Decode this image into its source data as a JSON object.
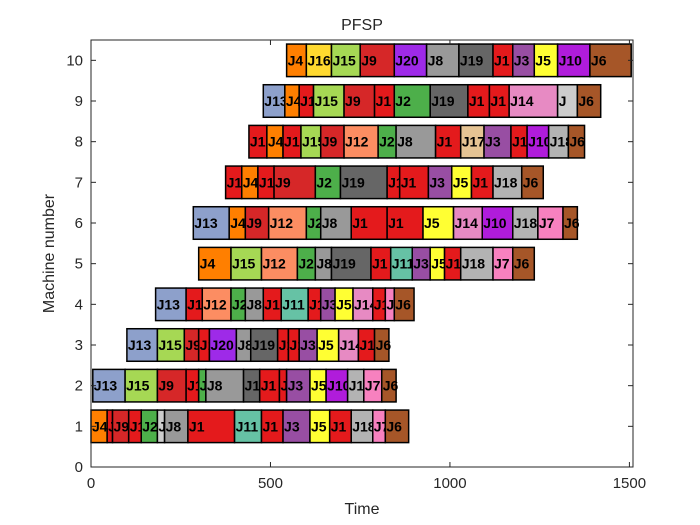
{
  "chart_data": {
    "type": "gantt",
    "title": "PFSP",
    "xlabel": "Time",
    "ylabel": "Machine number",
    "xlim": [
      0,
      1510
    ],
    "ylim": [
      0,
      10.5
    ],
    "xticks": [
      0,
      500,
      1000,
      1500
    ],
    "yticks": [
      0,
      1,
      2,
      3,
      4,
      5,
      6,
      7,
      8,
      9,
      10
    ],
    "grid": false,
    "colors": {
      "J1": "#e41a1c",
      "J2": "#4daf4a",
      "J3": "#984ea3",
      "J4": "#ff7f00",
      "J5": "#ffff33",
      "J6": "#a65628",
      "J7": "#f781bf",
      "J8": "#999999",
      "J9": "#d62728",
      "J10": "#b01cdb",
      "J11": "#66c2a5",
      "J12": "#fc8d62",
      "J13": "#8da0cb",
      "J14": "#e78ac3",
      "J15": "#a6d854",
      "J16": "#ffd92f",
      "J17": "#e5c494",
      "J18": "#b3b3b3",
      "J19": "#666666",
      "J20": "#9e2ae8"
    },
    "tasks": [
      {
        "machine": 1,
        "job": "J4",
        "start": 0,
        "end": 45
      },
      {
        "machine": 1,
        "job": "J1",
        "start": 45,
        "end": 60
      },
      {
        "machine": 1,
        "job": "J9",
        "start": 60,
        "end": 105
      },
      {
        "machine": 1,
        "job": "J1",
        "start": 105,
        "end": 140
      },
      {
        "machine": 1,
        "job": "J2",
        "start": 140,
        "end": 185
      },
      {
        "machine": 1,
        "job": "J",
        "start": 185,
        "end": 205
      },
      {
        "machine": 1,
        "job": "J8",
        "start": 205,
        "end": 270
      },
      {
        "machine": 1,
        "job": "J1",
        "start": 270,
        "end": 400
      },
      {
        "machine": 1,
        "job": "J11",
        "start": 400,
        "end": 475
      },
      {
        "machine": 1,
        "job": "J1",
        "start": 475,
        "end": 535
      },
      {
        "machine": 1,
        "job": "J3",
        "start": 535,
        "end": 610
      },
      {
        "machine": 1,
        "job": "J5",
        "start": 610,
        "end": 665
      },
      {
        "machine": 1,
        "job": "J1",
        "start": 665,
        "end": 725
      },
      {
        "machine": 1,
        "job": "J18",
        "start": 725,
        "end": 785
      },
      {
        "machine": 1,
        "job": "J7",
        "start": 785,
        "end": 820
      },
      {
        "machine": 1,
        "job": "J6",
        "start": 820,
        "end": 885
      },
      {
        "machine": 2,
        "job": "J13",
        "start": 5,
        "end": 95
      },
      {
        "machine": 2,
        "job": "J15",
        "start": 95,
        "end": 185
      },
      {
        "machine": 2,
        "job": "J9",
        "start": 185,
        "end": 265
      },
      {
        "machine": 2,
        "job": "J1",
        "start": 265,
        "end": 300
      },
      {
        "machine": 2,
        "job": "J2",
        "start": 300,
        "end": 320
      },
      {
        "machine": 2,
        "job": "J8",
        "start": 320,
        "end": 425
      },
      {
        "machine": 2,
        "job": "J19",
        "start": 425,
        "end": 470
      },
      {
        "machine": 2,
        "job": "J1",
        "start": 470,
        "end": 525
      },
      {
        "machine": 2,
        "job": "J1",
        "start": 525,
        "end": 545
      },
      {
        "machine": 2,
        "job": "J3",
        "start": 545,
        "end": 610
      },
      {
        "machine": 2,
        "job": "J5",
        "start": 610,
        "end": 655
      },
      {
        "machine": 2,
        "job": "J10",
        "start": 655,
        "end": 715
      },
      {
        "machine": 2,
        "job": "J18",
        "start": 715,
        "end": 760
      },
      {
        "machine": 2,
        "job": "J7",
        "start": 760,
        "end": 810
      },
      {
        "machine": 2,
        "job": "J6",
        "start": 810,
        "end": 850
      },
      {
        "machine": 3,
        "job": "J13",
        "start": 100,
        "end": 185
      },
      {
        "machine": 3,
        "job": "J15",
        "start": 185,
        "end": 260
      },
      {
        "machine": 3,
        "job": "J9",
        "start": 260,
        "end": 300
      },
      {
        "machine": 3,
        "job": "J1",
        "start": 300,
        "end": 330
      },
      {
        "machine": 3,
        "job": "J20",
        "start": 330,
        "end": 405
      },
      {
        "machine": 3,
        "job": "J8",
        "start": 405,
        "end": 445
      },
      {
        "machine": 3,
        "job": "J19",
        "start": 445,
        "end": 520
      },
      {
        "machine": 3,
        "job": "J1",
        "start": 520,
        "end": 550
      },
      {
        "machine": 3,
        "job": "J1",
        "start": 550,
        "end": 580
      },
      {
        "machine": 3,
        "job": "J3",
        "start": 580,
        "end": 630
      },
      {
        "machine": 3,
        "job": "J5",
        "start": 630,
        "end": 690
      },
      {
        "machine": 3,
        "job": "J14",
        "start": 690,
        "end": 745
      },
      {
        "machine": 3,
        "job": "J1",
        "start": 745,
        "end": 790
      },
      {
        "machine": 3,
        "job": "J6",
        "start": 790,
        "end": 830
      },
      {
        "machine": 4,
        "job": "J13",
        "start": 180,
        "end": 265
      },
      {
        "machine": 4,
        "job": "J1",
        "start": 265,
        "end": 310
      },
      {
        "machine": 4,
        "job": "J12",
        "start": 310,
        "end": 390
      },
      {
        "machine": 4,
        "job": "J2",
        "start": 390,
        "end": 430
      },
      {
        "machine": 4,
        "job": "J8",
        "start": 430,
        "end": 480
      },
      {
        "machine": 4,
        "job": "J1",
        "start": 480,
        "end": 530
      },
      {
        "machine": 4,
        "job": "J11",
        "start": 530,
        "end": 605
      },
      {
        "machine": 4,
        "job": "J1",
        "start": 605,
        "end": 640
      },
      {
        "machine": 4,
        "job": "J3",
        "start": 640,
        "end": 680
      },
      {
        "machine": 4,
        "job": "J5",
        "start": 680,
        "end": 730
      },
      {
        "machine": 4,
        "job": "J14",
        "start": 730,
        "end": 785
      },
      {
        "machine": 4,
        "job": "J1",
        "start": 785,
        "end": 820
      },
      {
        "machine": 4,
        "job": "J7",
        "start": 820,
        "end": 845
      },
      {
        "machine": 4,
        "job": "J6",
        "start": 845,
        "end": 900
      },
      {
        "machine": 5,
        "job": "J4",
        "start": 300,
        "end": 390
      },
      {
        "machine": 5,
        "job": "J15",
        "start": 390,
        "end": 475
      },
      {
        "machine": 5,
        "job": "J12",
        "start": 475,
        "end": 575
      },
      {
        "machine": 5,
        "job": "J2",
        "start": 575,
        "end": 625
      },
      {
        "machine": 5,
        "job": "J8",
        "start": 625,
        "end": 670
      },
      {
        "machine": 5,
        "job": "J19",
        "start": 670,
        "end": 780
      },
      {
        "machine": 5,
        "job": "J1",
        "start": 780,
        "end": 835
      },
      {
        "machine": 5,
        "job": "J11",
        "start": 835,
        "end": 895
      },
      {
        "machine": 5,
        "job": "J3",
        "start": 895,
        "end": 945
      },
      {
        "machine": 5,
        "job": "J5",
        "start": 945,
        "end": 985
      },
      {
        "machine": 5,
        "job": "J1",
        "start": 985,
        "end": 1030
      },
      {
        "machine": 5,
        "job": "J18",
        "start": 1030,
        "end": 1120
      },
      {
        "machine": 5,
        "job": "J7",
        "start": 1120,
        "end": 1175
      },
      {
        "machine": 5,
        "job": "J6",
        "start": 1175,
        "end": 1235
      },
      {
        "machine": 6,
        "job": "J13",
        "start": 285,
        "end": 385
      },
      {
        "machine": 6,
        "job": "J4",
        "start": 385,
        "end": 430
      },
      {
        "machine": 6,
        "job": "J9",
        "start": 430,
        "end": 495
      },
      {
        "machine": 6,
        "job": "J12",
        "start": 495,
        "end": 600
      },
      {
        "machine": 6,
        "job": "J2",
        "start": 600,
        "end": 640
      },
      {
        "machine": 6,
        "job": "J8",
        "start": 640,
        "end": 725
      },
      {
        "machine": 6,
        "job": "J1",
        "start": 725,
        "end": 825
      },
      {
        "machine": 6,
        "job": "J1",
        "start": 825,
        "end": 925
      },
      {
        "machine": 6,
        "job": "J5",
        "start": 925,
        "end": 1010
      },
      {
        "machine": 6,
        "job": "J14",
        "start": 1010,
        "end": 1090
      },
      {
        "machine": 6,
        "job": "J10",
        "start": 1090,
        "end": 1175
      },
      {
        "machine": 6,
        "job": "J18",
        "start": 1175,
        "end": 1245
      },
      {
        "machine": 6,
        "job": "J7",
        "start": 1245,
        "end": 1315
      },
      {
        "machine": 6,
        "job": "J6",
        "start": 1315,
        "end": 1355
      },
      {
        "machine": 7,
        "job": "J1",
        "start": 375,
        "end": 420
      },
      {
        "machine": 7,
        "job": "J4",
        "start": 420,
        "end": 465
      },
      {
        "machine": 7,
        "job": "J1",
        "start": 465,
        "end": 510
      },
      {
        "machine": 7,
        "job": "J9",
        "start": 510,
        "end": 625
      },
      {
        "machine": 7,
        "job": "J2",
        "start": 625,
        "end": 695
      },
      {
        "machine": 7,
        "job": "J19",
        "start": 695,
        "end": 825
      },
      {
        "machine": 7,
        "job": "J1",
        "start": 825,
        "end": 860
      },
      {
        "machine": 7,
        "job": "J1",
        "start": 860,
        "end": 940
      },
      {
        "machine": 7,
        "job": "J3",
        "start": 940,
        "end": 1005
      },
      {
        "machine": 7,
        "job": "J5",
        "start": 1005,
        "end": 1060
      },
      {
        "machine": 7,
        "job": "J1",
        "start": 1060,
        "end": 1120
      },
      {
        "machine": 7,
        "job": "J18",
        "start": 1120,
        "end": 1200
      },
      {
        "machine": 7,
        "job": "J6",
        "start": 1200,
        "end": 1260
      },
      {
        "machine": 8,
        "job": "J1",
        "start": 440,
        "end": 490
      },
      {
        "machine": 8,
        "job": "J4",
        "start": 490,
        "end": 535
      },
      {
        "machine": 8,
        "job": "J1",
        "start": 535,
        "end": 585
      },
      {
        "machine": 8,
        "job": "J15",
        "start": 585,
        "end": 640
      },
      {
        "machine": 8,
        "job": "J9",
        "start": 640,
        "end": 705
      },
      {
        "machine": 8,
        "job": "J12",
        "start": 705,
        "end": 800
      },
      {
        "machine": 8,
        "job": "J2",
        "start": 800,
        "end": 850
      },
      {
        "machine": 8,
        "job": "J8",
        "start": 850,
        "end": 960
      },
      {
        "machine": 8,
        "job": "J1",
        "start": 960,
        "end": 1030
      },
      {
        "machine": 8,
        "job": "J17",
        "start": 1030,
        "end": 1095
      },
      {
        "machine": 8,
        "job": "J3",
        "start": 1095,
        "end": 1170
      },
      {
        "machine": 8,
        "job": "J1",
        "start": 1170,
        "end": 1215
      },
      {
        "machine": 8,
        "job": "J10",
        "start": 1215,
        "end": 1275
      },
      {
        "machine": 8,
        "job": "J18",
        "start": 1275,
        "end": 1330
      },
      {
        "machine": 8,
        "job": "J6",
        "start": 1330,
        "end": 1375
      },
      {
        "machine": 9,
        "job": "J13",
        "start": 480,
        "end": 540
      },
      {
        "machine": 9,
        "job": "J4",
        "start": 540,
        "end": 580
      },
      {
        "machine": 9,
        "job": "J1",
        "start": 580,
        "end": 620
      },
      {
        "machine": 9,
        "job": "J15",
        "start": 620,
        "end": 705
      },
      {
        "machine": 9,
        "job": "J9",
        "start": 705,
        "end": 790
      },
      {
        "machine": 9,
        "job": "J1",
        "start": 790,
        "end": 845
      },
      {
        "machine": 9,
        "job": "J2",
        "start": 845,
        "end": 945
      },
      {
        "machine": 9,
        "job": "J19",
        "start": 945,
        "end": 1050
      },
      {
        "machine": 9,
        "job": "J1",
        "start": 1050,
        "end": 1110
      },
      {
        "machine": 9,
        "job": "J1",
        "start": 1110,
        "end": 1165
      },
      {
        "machine": 9,
        "job": "J14",
        "start": 1165,
        "end": 1300
      },
      {
        "machine": 9,
        "job": "J",
        "start": 1300,
        "end": 1355
      },
      {
        "machine": 9,
        "job": "J6",
        "start": 1355,
        "end": 1420
      },
      {
        "machine": 10,
        "job": "J4",
        "start": 545,
        "end": 600
      },
      {
        "machine": 10,
        "job": "J16",
        "start": 600,
        "end": 670
      },
      {
        "machine": 10,
        "job": "J15",
        "start": 670,
        "end": 750
      },
      {
        "machine": 10,
        "job": "J9",
        "start": 750,
        "end": 845
      },
      {
        "machine": 10,
        "job": "J20",
        "start": 845,
        "end": 935
      },
      {
        "machine": 10,
        "job": "J8",
        "start": 935,
        "end": 1025
      },
      {
        "machine": 10,
        "job": "J19",
        "start": 1025,
        "end": 1120
      },
      {
        "machine": 10,
        "job": "J1",
        "start": 1120,
        "end": 1175
      },
      {
        "machine": 10,
        "job": "J3",
        "start": 1175,
        "end": 1235
      },
      {
        "machine": 10,
        "job": "J5",
        "start": 1235,
        "end": 1300
      },
      {
        "machine": 10,
        "job": "J10",
        "start": 1300,
        "end": 1390
      },
      {
        "machine": 10,
        "job": "J6",
        "start": 1390,
        "end": 1505
      }
    ]
  }
}
